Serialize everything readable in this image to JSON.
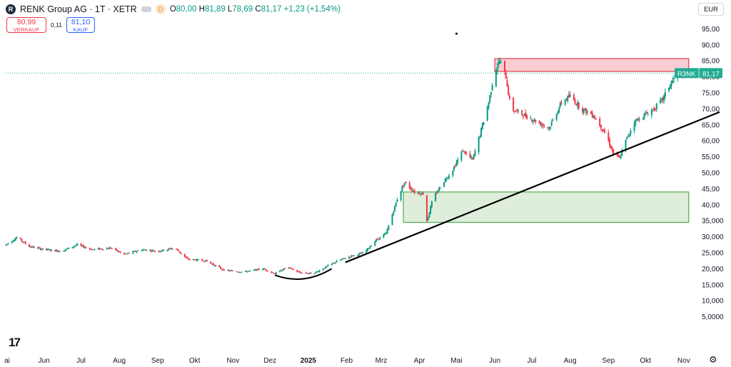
{
  "header": {
    "logo_letter": "R",
    "symbol": "RENK Group AG · 1T · XETR",
    "delay_badge": "D",
    "ohlc": {
      "o_label": "O",
      "o": "80,00",
      "h_label": "H",
      "h": "81,89",
      "l_label": "L",
      "l": "78,69",
      "c_label": "C",
      "c": "81,17",
      "change": "+1,23 (+1,54%)"
    }
  },
  "trade": {
    "sell_price": "80,99",
    "sell_label": "VERKAUF",
    "spread": "0,11",
    "buy_price": "81,10",
    "buy_label": "KAUF"
  },
  "currency": "EUR",
  "watermark": "17",
  "settings_icon": "gear-icon",
  "colors": {
    "up": "#089981",
    "down": "#f23645",
    "resistance_fill": "#f7c5cb",
    "support_fill": "#d9ebd3",
    "last_price": "#22ab94"
  },
  "chart_data": {
    "type": "candlestick",
    "ylim": [
      0,
      100
    ],
    "y_ticks": [
      "95,00",
      "90,00",
      "85,00",
      "80,00",
      "75,00",
      "70,00",
      "65,00",
      "60,00",
      "55,00",
      "50,00",
      "45,00",
      "40,00",
      "35,000",
      "30,000",
      "25,000",
      "20,000",
      "15,000",
      "10,000",
      "5,0000"
    ],
    "y_tick_values": [
      95,
      90,
      85,
      80,
      75,
      70,
      65,
      60,
      55,
      50,
      45,
      40,
      35,
      30,
      25,
      20,
      15,
      10,
      5
    ],
    "x_ticks": [
      {
        "label": "ai",
        "date": "2024-05-01"
      },
      {
        "label": "Jun",
        "date": "2024-06-01"
      },
      {
        "label": "Jul",
        "date": "2024-07-01"
      },
      {
        "label": "Aug",
        "date": "2024-08-01"
      },
      {
        "label": "Sep",
        "date": "2024-09-01"
      },
      {
        "label": "Okt",
        "date": "2024-10-01"
      },
      {
        "label": "Nov",
        "date": "2024-11-01"
      },
      {
        "label": "Dez",
        "date": "2024-12-01"
      },
      {
        "label": "2025",
        "date": "2025-01-01",
        "bold": true
      },
      {
        "label": "Feb",
        "date": "2025-02-01"
      },
      {
        "label": "Mrz",
        "date": "2025-03-01"
      },
      {
        "label": "Apr",
        "date": "2025-04-01"
      },
      {
        "label": "Mai",
        "date": "2025-05-01"
      },
      {
        "label": "Jun",
        "date": "2025-06-01"
      },
      {
        "label": "Jul",
        "date": "2025-07-01"
      },
      {
        "label": "Aug",
        "date": "2025-08-01"
      },
      {
        "label": "Sep",
        "date": "2025-09-01"
      },
      {
        "label": "Okt",
        "date": "2025-10-01"
      },
      {
        "label": "Nov",
        "date": "2025-11-01"
      }
    ],
    "x_range": [
      "2024-05-01",
      "2025-11-30"
    ],
    "price_path": [
      [
        "2024-05-01",
        27.5
      ],
      [
        "2024-05-10",
        29.8
      ],
      [
        "2024-05-20",
        27.0
      ],
      [
        "2024-06-01",
        26.0
      ],
      [
        "2024-06-15",
        25.5
      ],
      [
        "2024-06-28",
        27.5
      ],
      [
        "2024-07-10",
        26.0
      ],
      [
        "2024-07-25",
        26.5
      ],
      [
        "2024-08-05",
        24.5
      ],
      [
        "2024-08-20",
        26.0
      ],
      [
        "2024-09-01",
        25.5
      ],
      [
        "2024-09-15",
        26.5
      ],
      [
        "2024-09-25",
        23.0
      ],
      [
        "2024-10-10",
        22.5
      ],
      [
        "2024-10-25",
        19.5
      ],
      [
        "2024-11-10",
        19.0
      ],
      [
        "2024-11-25",
        20.0
      ],
      [
        "2024-12-05",
        18.5
      ],
      [
        "2024-12-15",
        20.5
      ],
      [
        "2024-12-25",
        18.8
      ],
      [
        "2025-01-05",
        18.5
      ],
      [
        "2025-01-15",
        20.5
      ],
      [
        "2025-01-25",
        22.5
      ],
      [
        "2025-02-05",
        24.0
      ],
      [
        "2025-02-15",
        25.0
      ],
      [
        "2025-02-25",
        29.0
      ],
      [
        "2025-03-05",
        31.0
      ],
      [
        "2025-03-10",
        37.0
      ],
      [
        "2025-03-15",
        43.0
      ],
      [
        "2025-03-20",
        47.0
      ],
      [
        "2025-03-28",
        44.0
      ],
      [
        "2025-04-04",
        43.5
      ],
      [
        "2025-04-07",
        35.0
      ],
      [
        "2025-04-12",
        42.0
      ],
      [
        "2025-04-20",
        47.0
      ],
      [
        "2025-04-28",
        51.0
      ],
      [
        "2025-05-06",
        57.0
      ],
      [
        "2025-05-14",
        54.0
      ],
      [
        "2025-05-20",
        62.0
      ],
      [
        "2025-05-27",
        72.0
      ],
      [
        "2025-06-01",
        82.0
      ],
      [
        "2025-06-05",
        85.0
      ],
      [
        "2025-06-10",
        80.0
      ],
      [
        "2025-06-14",
        70.0
      ],
      [
        "2025-06-25",
        68.0
      ],
      [
        "2025-07-05",
        66.0
      ],
      [
        "2025-07-15",
        64.0
      ],
      [
        "2025-07-25",
        72.0
      ],
      [
        "2025-08-01",
        74.0
      ],
      [
        "2025-08-10",
        70.0
      ],
      [
        "2025-08-20",
        68.0
      ],
      [
        "2025-08-30",
        62.0
      ],
      [
        "2025-09-05",
        56.0
      ],
      [
        "2025-09-10",
        54.5
      ],
      [
        "2025-09-15",
        60.0
      ],
      [
        "2025-09-22",
        66.0
      ],
      [
        "2025-09-30",
        68.0
      ],
      [
        "2025-10-08",
        70.0
      ],
      [
        "2025-10-15",
        73.0
      ],
      [
        "2025-10-20",
        77.0
      ],
      [
        "2025-10-27",
        81.17
      ]
    ],
    "last_price": {
      "ticker": "R3NK",
      "value": "81,17",
      "y": 81.17
    },
    "markers": [
      {
        "date": "2025-05-01",
        "y": 93.5
      }
    ],
    "zones": [
      {
        "name": "resistance",
        "from": "2025-06-01",
        "to": "2025-11-05",
        "y0": 81.7,
        "y1": 85.7
      },
      {
        "name": "support",
        "from": "2025-03-19",
        "to": "2025-11-05",
        "y0": 34.5,
        "y1": 44.0
      }
    ],
    "trendline": {
      "from": [
        "2025-01-31",
        22.0
      ],
      "to": [
        "2025-11-30",
        69.0
      ]
    },
    "rounding_bottom": {
      "from": [
        "2024-12-05",
        18.0
      ],
      "to": [
        "2025-01-20",
        20.0
      ],
      "low": 16.5
    }
  }
}
